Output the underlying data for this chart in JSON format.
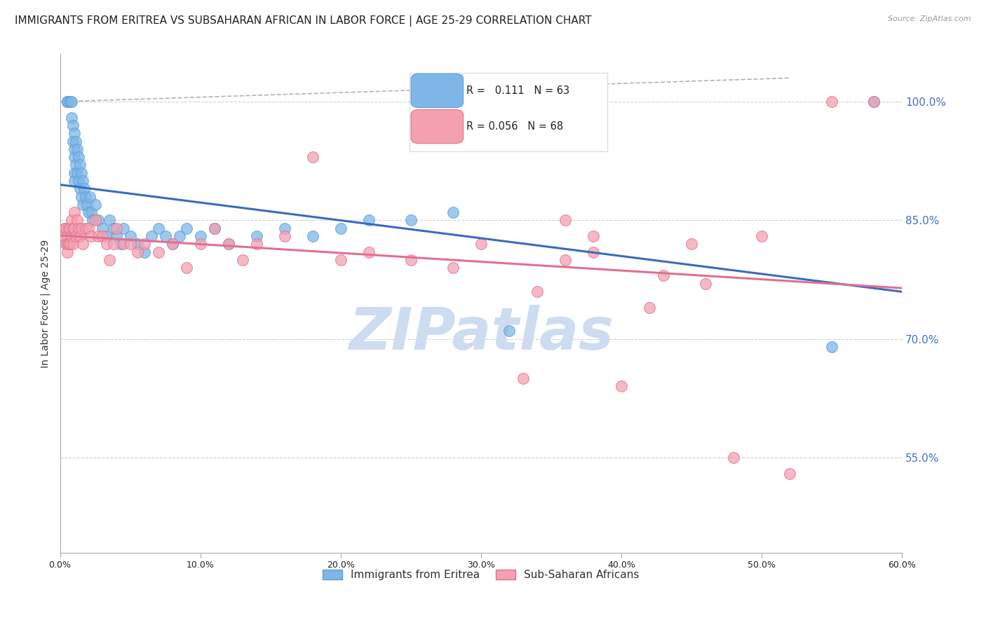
{
  "title": "IMMIGRANTS FROM ERITREA VS SUBSAHARAN AFRICAN IN LABOR FORCE | AGE 25-29 CORRELATION CHART",
  "source": "Source: ZipAtlas.com",
  "ylabel": "In Labor Force | Age 25-29",
  "x_tick_labels": [
    "0.0%",
    "10.0%",
    "20.0%",
    "30.0%",
    "40.0%",
    "50.0%",
    "60.0%"
  ],
  "x_tick_values": [
    0.0,
    0.1,
    0.2,
    0.3,
    0.4,
    0.5,
    0.6
  ],
  "y_tick_labels_right": [
    "100.0%",
    "85.0%",
    "70.0%",
    "55.0%"
  ],
  "y_tick_values_right": [
    1.0,
    0.85,
    0.7,
    0.55
  ],
  "xlim": [
    0.0,
    0.6
  ],
  "ylim": [
    0.43,
    1.06
  ],
  "series1_label": "Immigrants from Eritrea",
  "series1_color": "#7eb6e8",
  "series1_edge_color": "#5a9fd4",
  "series1_R": 0.111,
  "series1_N": 63,
  "series2_label": "Sub-Saharan Africans",
  "series2_color": "#f4a0b0",
  "series2_edge_color": "#e07090",
  "series2_R": 0.056,
  "series2_N": 68,
  "regression_line1_color": "#3a6bbf",
  "regression_line2_color": "#e07090",
  "dashed_line_color": "#aaaaaa",
  "grid_color": "#cccccc",
  "title_color": "#222222",
  "axis_label_color": "#333333",
  "right_tick_color": "#4472c4",
  "watermark_color": "#cddcf0",
  "background_color": "#ffffff",
  "blue_scatter_x": [
    0.005,
    0.005,
    0.005,
    0.007,
    0.008,
    0.008,
    0.009,
    0.009,
    0.01,
    0.01,
    0.01,
    0.01,
    0.01,
    0.011,
    0.011,
    0.012,
    0.012,
    0.013,
    0.013,
    0.014,
    0.014,
    0.015,
    0.015,
    0.016,
    0.016,
    0.017,
    0.018,
    0.019,
    0.02,
    0.021,
    0.022,
    0.023,
    0.025,
    0.027,
    0.03,
    0.033,
    0.035,
    0.038,
    0.04,
    0.043,
    0.045,
    0.05,
    0.055,
    0.06,
    0.065,
    0.07,
    0.075,
    0.08,
    0.085,
    0.09,
    0.1,
    0.11,
    0.12,
    0.14,
    0.16,
    0.18,
    0.2,
    0.22,
    0.25,
    0.28,
    0.32,
    0.55,
    0.58
  ],
  "blue_scatter_y": [
    1.0,
    1.0,
    1.0,
    1.0,
    1.0,
    0.98,
    0.97,
    0.95,
    0.96,
    0.94,
    0.93,
    0.91,
    0.9,
    0.95,
    0.92,
    0.94,
    0.91,
    0.93,
    0.9,
    0.92,
    0.89,
    0.91,
    0.88,
    0.9,
    0.87,
    0.89,
    0.88,
    0.87,
    0.86,
    0.88,
    0.86,
    0.85,
    0.87,
    0.85,
    0.84,
    0.83,
    0.85,
    0.84,
    0.83,
    0.82,
    0.84,
    0.83,
    0.82,
    0.81,
    0.83,
    0.84,
    0.83,
    0.82,
    0.83,
    0.84,
    0.83,
    0.84,
    0.82,
    0.83,
    0.84,
    0.83,
    0.84,
    0.85,
    0.85,
    0.86,
    0.71,
    0.69,
    1.0
  ],
  "pink_scatter_x": [
    0.003,
    0.003,
    0.004,
    0.004,
    0.005,
    0.005,
    0.005,
    0.006,
    0.006,
    0.007,
    0.007,
    0.008,
    0.008,
    0.009,
    0.009,
    0.01,
    0.01,
    0.011,
    0.012,
    0.013,
    0.014,
    0.015,
    0.016,
    0.018,
    0.02,
    0.022,
    0.025,
    0.027,
    0.03,
    0.033,
    0.035,
    0.038,
    0.04,
    0.045,
    0.05,
    0.055,
    0.06,
    0.07,
    0.08,
    0.09,
    0.1,
    0.11,
    0.12,
    0.13,
    0.14,
    0.16,
    0.18,
    0.2,
    0.22,
    0.25,
    0.28,
    0.3,
    0.33,
    0.36,
    0.38,
    0.42,
    0.45,
    0.48,
    0.5,
    0.52,
    0.55,
    0.58,
    0.4,
    0.43,
    0.46,
    0.34,
    0.36,
    0.38
  ],
  "pink_scatter_y": [
    0.84,
    0.83,
    0.84,
    0.82,
    0.83,
    0.82,
    0.81,
    0.84,
    0.82,
    0.84,
    0.82,
    0.85,
    0.83,
    0.84,
    0.82,
    0.86,
    0.84,
    0.83,
    0.85,
    0.84,
    0.83,
    0.84,
    0.82,
    0.84,
    0.84,
    0.83,
    0.85,
    0.83,
    0.83,
    0.82,
    0.8,
    0.82,
    0.84,
    0.82,
    0.82,
    0.81,
    0.82,
    0.81,
    0.82,
    0.79,
    0.82,
    0.84,
    0.82,
    0.8,
    0.82,
    0.83,
    0.93,
    0.8,
    0.81,
    0.8,
    0.79,
    0.82,
    0.65,
    0.85,
    0.83,
    0.74,
    0.82,
    0.55,
    0.83,
    0.53,
    1.0,
    1.0,
    0.64,
    0.78,
    0.77,
    0.76,
    0.8,
    0.81
  ],
  "title_fontsize": 11,
  "axis_fontsize": 10,
  "tick_fontsize": 9,
  "legend_fontsize": 10
}
